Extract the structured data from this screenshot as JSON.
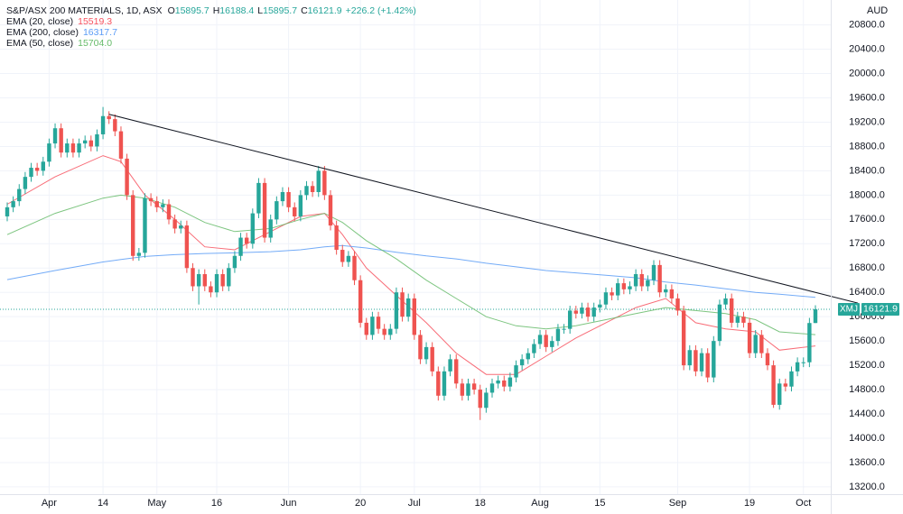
{
  "chart_data": {
    "type": "candlestick",
    "title": "S&P/ASX 200 MATERIALS, 1D, ASX",
    "ohlc_keys": [
      "O",
      "H",
      "L",
      "C"
    ],
    "change": "+226.2 (+1.42%)",
    "currency": "AUD",
    "symbol": "XMJ",
    "up_color": "#26a69a",
    "down_color": "#ef5350",
    "grid": true,
    "x": [
      "Mar 23",
      "Mar 24",
      "Mar 25",
      "Mar 28",
      "Mar 29",
      "Mar 30",
      "Mar 31",
      "Apr 1",
      "Apr 4",
      "Apr 5",
      "Apr 6",
      "Apr 7",
      "Apr 8",
      "Apr 11",
      "Apr 12",
      "Apr 13",
      "Apr 14",
      "Apr 19",
      "Apr 20",
      "Apr 21",
      "Apr 22",
      "Apr 26",
      "Apr 27",
      "Apr 28",
      "Apr 29",
      "May 2",
      "May 3",
      "May 4",
      "May 5",
      "May 6",
      "May 9",
      "May 10",
      "May 11",
      "May 12",
      "May 13",
      "May 16",
      "May 17",
      "May 18",
      "May 19",
      "May 20",
      "May 23",
      "May 24",
      "May 25",
      "May 26",
      "May 27",
      "May 30",
      "May 31",
      "Jun 1",
      "Jun 2",
      "Jun 3",
      "Jun 6",
      "Jun 7",
      "Jun 8",
      "Jun 9",
      "Jun 10",
      "Jun 14",
      "Jun 15",
      "Jun 16",
      "Jun 17",
      "Jun 20",
      "Jun 21",
      "Jun 22",
      "Jun 23",
      "Jun 24",
      "Jun 27",
      "Jun 28",
      "Jun 29",
      "Jun 30",
      "Jul 1",
      "Jul 4",
      "Jul 5",
      "Jul 6",
      "Jul 7",
      "Jul 8",
      "Jul 11",
      "Jul 12",
      "Jul 13",
      "Jul 14",
      "Jul 15",
      "Jul 18",
      "Jul 19",
      "Jul 20",
      "Jul 21",
      "Jul 22",
      "Jul 25",
      "Jul 26",
      "Jul 27",
      "Jul 28",
      "Jul 29",
      "Aug 1",
      "Aug 2",
      "Aug 3",
      "Aug 4",
      "Aug 5",
      "Aug 8",
      "Aug 9",
      "Aug 10",
      "Aug 11",
      "Aug 12",
      "Aug 15",
      "Aug 16",
      "Aug 17",
      "Aug 18",
      "Aug 19",
      "Aug 22",
      "Aug 23",
      "Aug 24",
      "Aug 25",
      "Aug 26",
      "Aug 29",
      "Aug 30",
      "Aug 31",
      "Sep 1",
      "Sep 2",
      "Sep 5",
      "Sep 6",
      "Sep 7",
      "Sep 8",
      "Sep 9",
      "Sep 12",
      "Sep 13",
      "Sep 14",
      "Sep 15",
      "Sep 16",
      "Sep 19",
      "Sep 20",
      "Sep 21",
      "Sep 23",
      "Sep 26",
      "Sep 27",
      "Sep 28",
      "Sep 29",
      "Sep 30",
      "Oct 3",
      "Oct 4",
      "Oct 5"
    ],
    "open": [
      17650,
      17800,
      17900,
      18100,
      18300,
      18450,
      18400,
      18550,
      18850,
      19100,
      18700,
      18850,
      18700,
      18850,
      18900,
      18800,
      19000,
      19300,
      19250,
      19050,
      18600,
      18000,
      17000,
      17050,
      17950,
      17900,
      17800,
      17850,
      17600,
      17450,
      17500,
      16800,
      16500,
      16700,
      16500,
      16400,
      16700,
      16500,
      16800,
      17000,
      17300,
      17200,
      17700,
      18200,
      17300,
      17600,
      17900,
      18050,
      17800,
      17650,
      18000,
      18150,
      18050,
      18400,
      18000,
      17500,
      17100,
      16900,
      17000,
      16600,
      15900,
      15700,
      16000,
      15800,
      15700,
      15800,
      16400,
      16000,
      16300,
      15700,
      15300,
      15500,
      15100,
      14700,
      15100,
      15300,
      14900,
      14700,
      14900,
      14800,
      14500,
      14750,
      14900,
      14950,
      14850,
      15000,
      15200,
      15300,
      15400,
      15550,
      15700,
      15500,
      15600,
      15800,
      15800,
      16100,
      16050,
      16150,
      16000,
      16150,
      16200,
      16400,
      16350,
      16550,
      16450,
      16500,
      16700,
      16500,
      16600,
      16850,
      16400,
      16450,
      16300,
      16100,
      15200,
      15450,
      15100,
      15400,
      15000,
      15600,
      16200,
      16300,
      15900,
      16000,
      15900,
      15400,
      15700,
      15400,
      15200,
      14550,
      14900,
      14850,
      15100,
      15250,
      15250,
      15895.7
    ],
    "high": [
      17880,
      17980,
      18180,
      18380,
      18530,
      18530,
      18630,
      18930,
      19180,
      19180,
      18930,
      18930,
      18930,
      18980,
      18980,
      19080,
      19450,
      19380,
      19330,
      19130,
      18680,
      18080,
      17130,
      18030,
      18030,
      17980,
      17930,
      17930,
      17680,
      17580,
      17580,
      16880,
      16780,
      16780,
      16580,
      16780,
      16780,
      16880,
      17080,
      17380,
      17380,
      17780,
      18280,
      18280,
      17680,
      17980,
      18130,
      18130,
      17880,
      18080,
      18230,
      18230,
      18480,
      18480,
      18080,
      17580,
      17180,
      17080,
      17080,
      16680,
      15980,
      16080,
      16080,
      15880,
      15880,
      16480,
      16480,
      16380,
      16380,
      15780,
      15580,
      15580,
      15180,
      15180,
      15380,
      15380,
      14980,
      14980,
      14980,
      14880,
      14830,
      14980,
      15030,
      15030,
      15080,
      15280,
      15380,
      15480,
      15630,
      15780,
      15780,
      15680,
      15880,
      15880,
      16180,
      16180,
      16230,
      16230,
      16230,
      16280,
      16480,
      16480,
      16630,
      16630,
      16580,
      16780,
      16780,
      16680,
      16930,
      16930,
      16530,
      16530,
      16380,
      16180,
      15530,
      15530,
      15480,
      15480,
      15680,
      16280,
      16380,
      16380,
      16080,
      16080,
      15980,
      15780,
      15780,
      15480,
      15280,
      14980,
      14980,
      15180,
      15330,
      15330,
      15980,
      16188.4
    ],
    "low": [
      17570,
      17720,
      17820,
      18020,
      18220,
      18320,
      18320,
      18470,
      18770,
      18620,
      18620,
      18620,
      18620,
      18770,
      18720,
      18720,
      18920,
      19170,
      18970,
      18520,
      17920,
      16920,
      16920,
      16970,
      17820,
      17720,
      17720,
      17520,
      17370,
      17370,
      16720,
      16420,
      16200,
      16420,
      16320,
      16320,
      16420,
      16420,
      16720,
      16920,
      17120,
      17120,
      17620,
      17220,
      17220,
      17520,
      17820,
      17720,
      17570,
      17570,
      17920,
      17970,
      17970,
      17920,
      17420,
      17020,
      16820,
      16820,
      16520,
      15820,
      15620,
      15620,
      15720,
      15620,
      15620,
      15720,
      15920,
      15920,
      15620,
      15220,
      15220,
      15020,
      14620,
      14620,
      15020,
      14820,
      14620,
      14620,
      14720,
      14300,
      14420,
      14670,
      14820,
      14770,
      14770,
      14920,
      15120,
      15220,
      15320,
      15470,
      15420,
      15420,
      15520,
      15720,
      15720,
      15970,
      15970,
      15920,
      15920,
      16070,
      16120,
      16270,
      16270,
      16370,
      16370,
      16420,
      16420,
      16420,
      16520,
      16320,
      16320,
      16220,
      16020,
      15120,
      15120,
      15020,
      15020,
      14920,
      14920,
      15520,
      16120,
      15820,
      15820,
      15820,
      15320,
      15320,
      15320,
      15120,
      14500,
      14470,
      14770,
      14770,
      15020,
      15170,
      15170,
      15895.7
    ],
    "close": [
      17800,
      17900,
      18100,
      18300,
      18450,
      18400,
      18550,
      18850,
      19100,
      18700,
      18850,
      18700,
      18850,
      18900,
      18800,
      19000,
      19300,
      19250,
      19050,
      18600,
      18000,
      17000,
      17050,
      17950,
      17900,
      17800,
      17850,
      17600,
      17450,
      17500,
      16800,
      16500,
      16700,
      16500,
      16400,
      16700,
      16500,
      16800,
      17000,
      17300,
      17200,
      17700,
      18200,
      17300,
      17600,
      17900,
      18050,
      17800,
      17650,
      18000,
      18150,
      18050,
      18400,
      18000,
      17500,
      17100,
      16900,
      17000,
      16600,
      15900,
      15700,
      16000,
      15800,
      15700,
      15800,
      16400,
      16000,
      16300,
      15700,
      15300,
      15500,
      15100,
      14700,
      15100,
      15300,
      14900,
      14700,
      14900,
      14800,
      14500,
      14750,
      14900,
      14950,
      14850,
      15000,
      15200,
      15300,
      15400,
      15550,
      15700,
      15500,
      15600,
      15800,
      15800,
      16100,
      16050,
      16150,
      16000,
      16150,
      16200,
      16400,
      16350,
      16550,
      16450,
      16500,
      16700,
      16500,
      16600,
      16850,
      16400,
      16450,
      16300,
      16100,
      15200,
      15450,
      15100,
      15400,
      15000,
      15600,
      16200,
      16300,
      15900,
      16000,
      15900,
      15400,
      15700,
      15400,
      15200,
      14550,
      14900,
      14850,
      15100,
      15250,
      15250,
      15895.7,
      16121.9
    ],
    "overlays": [
      {
        "name": "EMA (20, close)",
        "legend_value": "15519.3",
        "color": "#f7525f",
        "x": [
          "Mar 23",
          "Apr 4",
          "Apr 14",
          "Apr 21",
          "Apr 28",
          "May 5",
          "May 12",
          "May 19",
          "May 27",
          "Jun 3",
          "Jun 9",
          "Jun 15",
          "Jun 21",
          "Jun 28",
          "Jul 5",
          "Jul 12",
          "Jul 19",
          "Jul 26",
          "Aug 2",
          "Aug 9",
          "Aug 16",
          "Aug 23",
          "Aug 30",
          "Sep 6",
          "Sep 13",
          "Sep 20",
          "Sep 27",
          "Oct 5"
        ],
        "values": [
          17850,
          18300,
          18650,
          18550,
          18000,
          17600,
          17150,
          17100,
          17400,
          17650,
          17700,
          17350,
          16800,
          16350,
          15900,
          15400,
          15050,
          15050,
          15350,
          15650,
          15900,
          16150,
          16300,
          15900,
          15800,
          15750,
          15450,
          15519.3
        ]
      },
      {
        "name": "EMA (200, close)",
        "legend_value": "16317.7",
        "color": "#5b9cf6",
        "x": [
          "Mar 23",
          "Apr 4",
          "Apr 14",
          "Apr 21",
          "Apr 28",
          "May 5",
          "May 12",
          "May 19",
          "May 27",
          "Jun 3",
          "Jun 9",
          "Jun 15",
          "Jun 21",
          "Jun 28",
          "Jul 5",
          "Jul 12",
          "Jul 19",
          "Jul 26",
          "Aug 2",
          "Aug 9",
          "Aug 16",
          "Aug 23",
          "Aug 30",
          "Sep 6",
          "Sep 13",
          "Sep 20",
          "Sep 27",
          "Oct 5"
        ],
        "values": [
          16610,
          16760,
          16900,
          16940,
          16990,
          17020,
          17040,
          17050,
          17070,
          17100,
          17150,
          17170,
          17130,
          17060,
          17000,
          16950,
          16880,
          16820,
          16760,
          16720,
          16680,
          16640,
          16570,
          16520,
          16460,
          16400,
          16370,
          16317.7
        ]
      },
      {
        "name": "EMA (50, close)",
        "legend_value": "15704.0",
        "color": "#66bb6a",
        "x": [
          "Mar 23",
          "Apr 4",
          "Apr 14",
          "Apr 21",
          "Apr 28",
          "May 5",
          "May 12",
          "May 19",
          "May 27",
          "Jun 3",
          "Jun 9",
          "Jun 15",
          "Jun 21",
          "Jun 28",
          "Jul 5",
          "Jul 12",
          "Jul 19",
          "Jul 26",
          "Aug 2",
          "Aug 9",
          "Aug 16",
          "Aug 23",
          "Aug 30",
          "Sep 6",
          "Sep 13",
          "Sep 20",
          "Sep 27",
          "Oct 5"
        ],
        "values": [
          17350,
          17700,
          17950,
          18000,
          17950,
          17800,
          17550,
          17400,
          17450,
          17600,
          17700,
          17550,
          17250,
          16950,
          16600,
          16300,
          16000,
          15850,
          15800,
          15850,
          15950,
          16050,
          16150,
          16100,
          16050,
          15950,
          15750,
          15704
        ]
      }
    ],
    "trendline": {
      "color": "#131722",
      "x": [
        "Apr 19",
        "Oct 5"
      ],
      "values": [
        19330,
        16400
      ]
    },
    "ylim": [
      13080,
      21210
    ],
    "yticks": [
      {
        "value": 13200,
        "label": "13200.0"
      },
      {
        "value": 13600,
        "label": "13600.0"
      },
      {
        "value": 14000,
        "label": "14000.0"
      },
      {
        "value": 14400,
        "label": "14400.0"
      },
      {
        "value": 14800,
        "label": "14800.0"
      },
      {
        "value": 15200,
        "label": "15200.0"
      },
      {
        "value": 15600,
        "label": "15600.0"
      },
      {
        "value": 16000,
        "label": "16000.0"
      },
      {
        "value": 16400,
        "label": "16400.0"
      },
      {
        "value": 16800,
        "label": "16800.0"
      },
      {
        "value": 17200,
        "label": "17200.0"
      },
      {
        "value": 17600,
        "label": "17600.0"
      },
      {
        "value": 18000,
        "label": "18000.0"
      },
      {
        "value": 18400,
        "label": "18400.0"
      },
      {
        "value": 18800,
        "label": "18800.0"
      },
      {
        "value": 19200,
        "label": "19200.0"
      },
      {
        "value": 19600,
        "label": "19600.0"
      },
      {
        "value": 20000,
        "label": "20000.0"
      },
      {
        "value": 20400,
        "label": "20400.0"
      },
      {
        "value": 20800,
        "label": "20800.0"
      }
    ],
    "xticks": [
      {
        "value": "Apr 1",
        "label": "Apr"
      },
      {
        "value": "Apr 14",
        "label": "14"
      },
      {
        "value": "May 2",
        "label": "May"
      },
      {
        "value": "May 16",
        "label": "16"
      },
      {
        "value": "Jun 1",
        "label": "Jun"
      },
      {
        "value": "Jun 20",
        "label": "20"
      },
      {
        "value": "Jul 1",
        "label": "Jul"
      },
      {
        "value": "Jul 18",
        "label": "18"
      },
      {
        "value": "Aug 1",
        "label": "Aug"
      },
      {
        "value": "Aug 15",
        "label": "15"
      },
      {
        "value": "Sep 1",
        "label": "Sep"
      },
      {
        "value": "Sep 19",
        "label": "19"
      },
      {
        "value": "Oct 3",
        "label": "Oct"
      }
    ]
  }
}
